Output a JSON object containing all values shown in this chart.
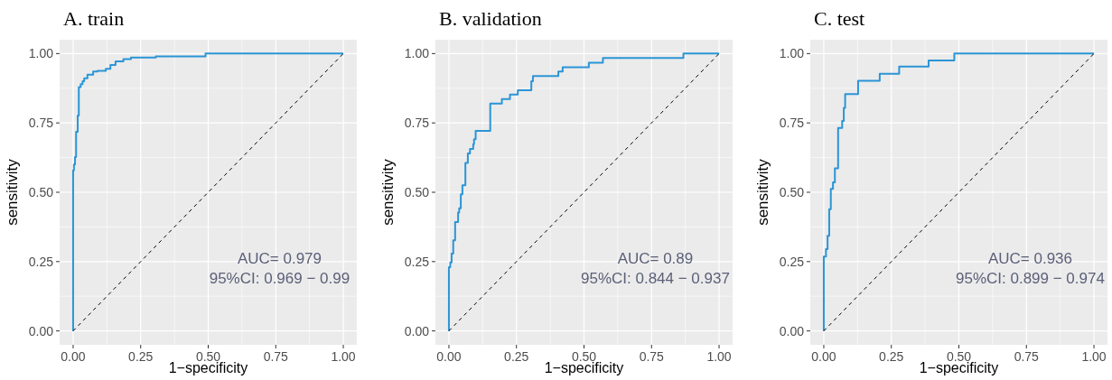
{
  "chart_data": [
    {
      "type": "step",
      "title": "A. train",
      "xlabel": "1−specificity",
      "ylabel": "sensitivity",
      "xlim": [
        -0.05,
        1.05
      ],
      "ylim": [
        -0.05,
        1.05
      ],
      "xticks": [
        {
          "value": 0,
          "label": "0.00"
        },
        {
          "value": 0.25,
          "label": "0.25"
        },
        {
          "value": 0.5,
          "label": "0.50"
        },
        {
          "value": 0.75,
          "label": "0.75"
        },
        {
          "value": 1,
          "label": "1.00"
        }
      ],
      "yticks": [
        {
          "value": 0,
          "label": "0.00"
        },
        {
          "value": 0.25,
          "label": "0.25"
        },
        {
          "value": 0.5,
          "label": "0.50"
        },
        {
          "value": 0.75,
          "label": "0.75"
        },
        {
          "value": 1,
          "label": "1.00"
        }
      ],
      "grid": true,
      "annotations": [
        "AUC= 0.979",
        "95%CI: 0.969 − 0.99"
      ],
      "series": [
        {
          "color": "#2b95d6",
          "x": [
            0,
            0,
            0.003,
            0.007,
            0.011,
            0.017,
            0.021,
            0.028,
            0.035,
            0.041,
            0.053,
            0.074,
            0.09,
            0.121,
            0.138,
            0.157,
            0.186,
            0.214,
            0.306,
            0.49,
            1
          ],
          "values": [
            0,
            0.579,
            0.6,
            0.627,
            0.718,
            0.777,
            0.879,
            0.89,
            0.9,
            0.911,
            0.924,
            0.935,
            0.938,
            0.945,
            0.959,
            0.972,
            0.98,
            0.986,
            0.99,
            1,
            1
          ]
        },
        {
          "type": "line",
          "color": "#000000",
          "line_style": "dashed",
          "x": [
            0,
            1
          ],
          "values": [
            0,
            1
          ]
        }
      ]
    },
    {
      "type": "step",
      "title": "B. validation",
      "xlabel": "1−specificity",
      "ylabel": "sensitivity",
      "xlim": [
        -0.05,
        1.05
      ],
      "ylim": [
        -0.05,
        1.05
      ],
      "xticks": [
        {
          "value": 0,
          "label": "0.00"
        },
        {
          "value": 0.25,
          "label": "0.25"
        },
        {
          "value": 0.5,
          "label": "0.50"
        },
        {
          "value": 0.75,
          "label": "0.75"
        },
        {
          "value": 1,
          "label": "1.00"
        }
      ],
      "yticks": [
        {
          "value": 0,
          "label": "0.00"
        },
        {
          "value": 0.25,
          "label": "0.25"
        },
        {
          "value": 0.5,
          "label": "0.50"
        },
        {
          "value": 0.75,
          "label": "0.75"
        },
        {
          "value": 1,
          "label": "1.00"
        }
      ],
      "grid": true,
      "annotations": [
        "AUC= 0.89",
        "95%CI: 0.844 − 0.937"
      ],
      "series": [
        {
          "color": "#2b95d6",
          "x": [
            0,
            0,
            0.005,
            0.01,
            0.016,
            0.023,
            0.034,
            0.038,
            0.044,
            0.05,
            0.061,
            0.07,
            0.078,
            0.09,
            0.093,
            0.099,
            0.153,
            0.196,
            0.226,
            0.255,
            0.305,
            0.311,
            0.405,
            0.421,
            0.518,
            0.57,
            0.868,
            1
          ],
          "values": [
            0,
            0.23,
            0.247,
            0.279,
            0.327,
            0.393,
            0.427,
            0.442,
            0.493,
            0.525,
            0.606,
            0.64,
            0.656,
            0.673,
            0.691,
            0.721,
            0.82,
            0.836,
            0.852,
            0.868,
            0.9,
            0.919,
            0.935,
            0.951,
            0.967,
            0.984,
            1,
            1
          ]
        },
        {
          "type": "line",
          "color": "#000000",
          "line_style": "dashed",
          "x": [
            0,
            1
          ],
          "values": [
            0,
            1
          ]
        }
      ]
    },
    {
      "type": "step",
      "title": "C. test",
      "xlabel": "1−specificity",
      "ylabel": "sensitivity",
      "xlim": [
        -0.05,
        1.05
      ],
      "ylim": [
        -0.05,
        1.05
      ],
      "xticks": [
        {
          "value": 0,
          "label": "0.00"
        },
        {
          "value": 0.25,
          "label": "0.25"
        },
        {
          "value": 0.5,
          "label": "0.50"
        },
        {
          "value": 0.75,
          "label": "0.75"
        },
        {
          "value": 1,
          "label": "1.00"
        }
      ],
      "yticks": [
        {
          "value": 0,
          "label": "0.00"
        },
        {
          "value": 0.25,
          "label": "0.25"
        },
        {
          "value": 0.5,
          "label": "0.50"
        },
        {
          "value": 0.75,
          "label": "0.75"
        },
        {
          "value": 1,
          "label": "1.00"
        }
      ],
      "grid": true,
      "annotations": [
        "AUC= 0.936",
        "95%CI: 0.899 − 0.974"
      ],
      "series": [
        {
          "color": "#2b95d6",
          "x": [
            0,
            0,
            0.008,
            0.014,
            0.02,
            0.026,
            0.034,
            0.041,
            0.053,
            0.068,
            0.074,
            0.079,
            0.127,
            0.207,
            0.279,
            0.388,
            0.483,
            1
          ],
          "values": [
            0,
            0.268,
            0.295,
            0.343,
            0.439,
            0.512,
            0.536,
            0.586,
            0.732,
            0.757,
            0.804,
            0.854,
            0.902,
            0.927,
            0.953,
            0.975,
            1,
            1
          ]
        },
        {
          "type": "line",
          "color": "#000000",
          "line_style": "dashed",
          "x": [
            0,
            1
          ],
          "values": [
            0,
            1
          ]
        }
      ]
    }
  ]
}
